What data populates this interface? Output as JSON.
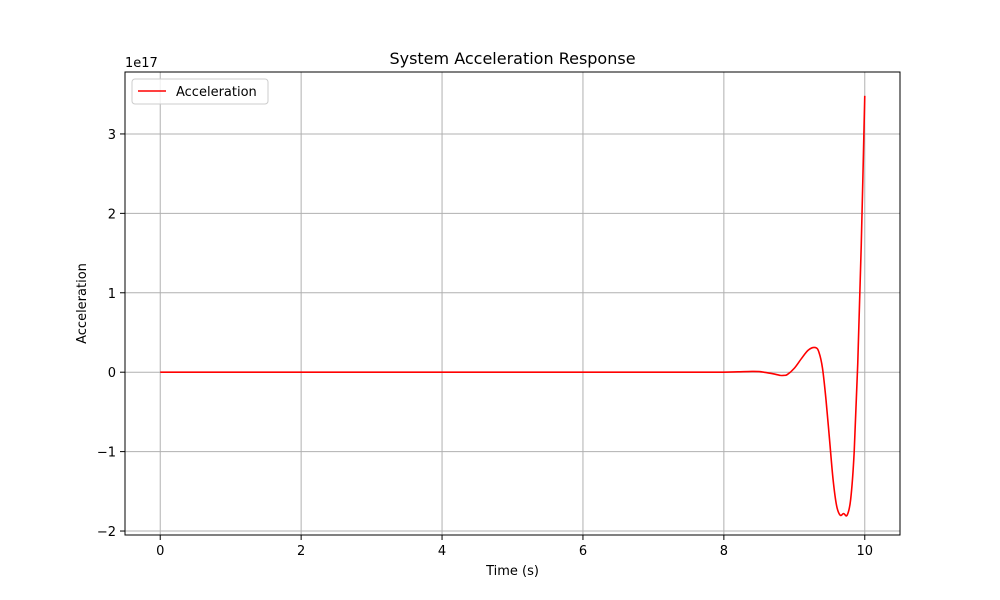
{
  "chart_data": {
    "type": "line",
    "title": "System Acceleration Response",
    "xlabel": "Time (s)",
    "ylabel": "Acceleration",
    "y_scale_label": "1e17",
    "y_multiplier": 1e+17,
    "xlim": [
      -0.5,
      10.5
    ],
    "ylim": [
      -2.05,
      3.78
    ],
    "x_ticks": [
      0,
      2,
      4,
      6,
      8,
      10
    ],
    "x_tick_labels": [
      "0",
      "2",
      "4",
      "6",
      "8",
      "10"
    ],
    "y_ticks": [
      -2,
      -1,
      0,
      1,
      2,
      3
    ],
    "y_tick_labels": [
      "−2",
      "−1",
      "0",
      "1",
      "2",
      "3"
    ],
    "grid": true,
    "legend": {
      "placement": "top-left",
      "entries": [
        "Acceleration"
      ]
    },
    "series": [
      {
        "name": "Acceleration",
        "color": "#ff0000",
        "x": [
          0,
          1,
          2,
          3,
          4,
          5,
          6,
          7,
          7.5,
          8.0,
          8.2,
          8.4,
          8.5,
          8.6,
          8.7,
          8.8,
          8.85,
          8.9,
          9.0,
          9.1,
          9.2,
          9.3,
          9.35,
          9.4,
          9.45,
          9.5,
          9.55,
          9.6,
          9.65,
          9.7,
          9.75,
          9.8,
          9.85,
          9.9,
          9.95,
          10.0
        ],
        "values": [
          0,
          0,
          0,
          0,
          0,
          0,
          0,
          0,
          0,
          0.0,
          0.005,
          0.01,
          0.008,
          -0.005,
          -0.02,
          -0.04,
          -0.04,
          -0.03,
          0.05,
          0.17,
          0.28,
          0.31,
          0.25,
          0.05,
          -0.35,
          -0.85,
          -1.35,
          -1.68,
          -1.8,
          -1.78,
          -1.8,
          -1.6,
          -1.0,
          0.1,
          1.6,
          3.48
        ]
      }
    ]
  }
}
